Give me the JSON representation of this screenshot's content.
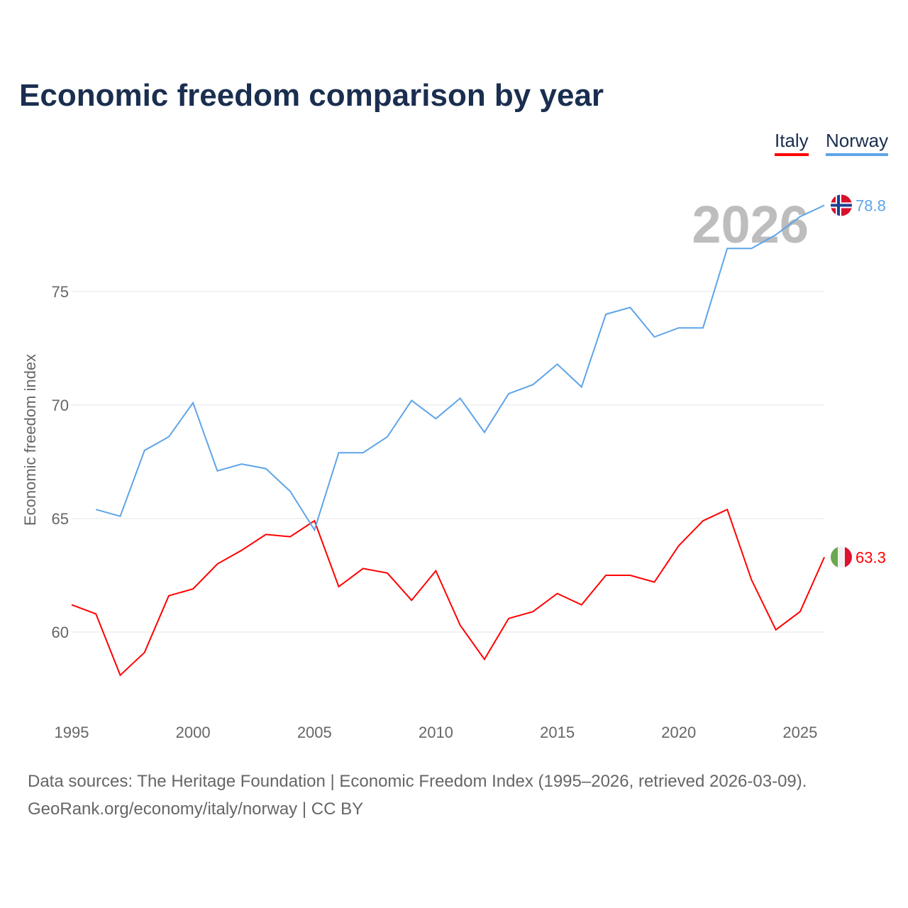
{
  "chart_data": {
    "type": "line",
    "title": "Economic freedom comparison by year",
    "ylabel": "Economic freedom index",
    "xlabel": "",
    "ylim": [
      56.3,
      79.5
    ],
    "xlim": [
      1995,
      2026
    ],
    "yticks": [
      60,
      65,
      70,
      75
    ],
    "xticks": [
      1995,
      2000,
      2005,
      2010,
      2015,
      2020,
      2025
    ],
    "grid": true,
    "legend_position": "top-right",
    "watermark_year": "2026",
    "series": [
      {
        "name": "Italy",
        "color": "#ff0000",
        "end_label": "63.3",
        "flag": "italy-flag",
        "x": [
          1995,
          1996,
          1997,
          1998,
          1999,
          2000,
          2001,
          2002,
          2003,
          2004,
          2005,
          2006,
          2007,
          2008,
          2009,
          2010,
          2011,
          2012,
          2013,
          2014,
          2015,
          2016,
          2017,
          2018,
          2019,
          2020,
          2021,
          2022,
          2023,
          2024,
          2025,
          2026
        ],
        "values": [
          61.2,
          60.8,
          58.1,
          59.1,
          61.6,
          61.9,
          63.0,
          63.6,
          64.3,
          64.2,
          64.9,
          62.0,
          62.8,
          62.6,
          61.4,
          62.7,
          60.3,
          58.8,
          60.6,
          60.9,
          61.7,
          61.2,
          62.5,
          62.5,
          62.2,
          63.8,
          64.9,
          65.4,
          62.3,
          60.1,
          60.9,
          63.3
        ]
      },
      {
        "name": "Norway",
        "color": "#5ea4e8",
        "end_label": "78.8",
        "flag": "norway-flag",
        "x": [
          1996,
          1997,
          1998,
          1999,
          2000,
          2001,
          2002,
          2003,
          2004,
          2005,
          2006,
          2007,
          2008,
          2009,
          2010,
          2011,
          2012,
          2013,
          2014,
          2015,
          2016,
          2017,
          2018,
          2019,
          2020,
          2021,
          2022,
          2023,
          2024,
          2025,
          2026
        ],
        "values": [
          65.4,
          65.1,
          68.0,
          68.6,
          70.1,
          67.1,
          67.4,
          67.2,
          66.2,
          64.5,
          67.9,
          67.9,
          68.6,
          70.2,
          69.4,
          70.3,
          68.8,
          70.5,
          70.9,
          71.8,
          70.8,
          74.0,
          74.3,
          73.0,
          73.4,
          73.4,
          76.9,
          76.9,
          77.5,
          78.3,
          78.8
        ]
      }
    ]
  },
  "footer": {
    "line1": "Data sources: The Heritage Foundation | Economic Freedom Index (1995–2026, retrieved 2026-03-09).",
    "line2": "GeoRank.org/economy/italy/norway | CC BY"
  }
}
